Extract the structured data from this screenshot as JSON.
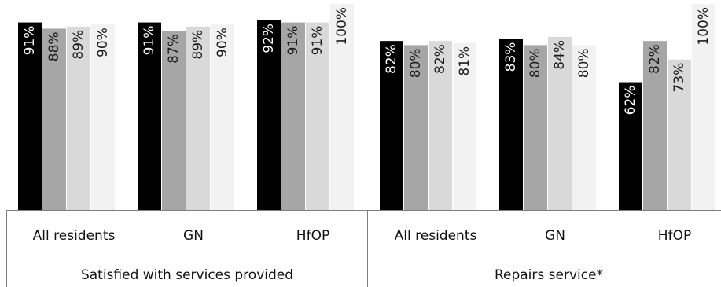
{
  "chart_data": {
    "type": "bar",
    "ylim": [
      0,
      105
    ],
    "value_suffix": "%",
    "grid": false,
    "legend": "none",
    "groups": [
      {
        "label": "Satisfied with services provided",
        "categories": [
          {
            "label": "All residents",
            "values": [
              91,
              88,
              89,
              90
            ]
          },
          {
            "label": "GN",
            "values": [
              91,
              87,
              89,
              90
            ]
          },
          {
            "label": "HfOP",
            "values": [
              92,
              91,
              91,
              100
            ]
          }
        ]
      },
      {
        "label": "Repairs service*",
        "categories": [
          {
            "label": "All residents",
            "values": [
              82,
              80,
              82,
              81
            ]
          },
          {
            "label": "GN",
            "values": [
              83,
              80,
              84,
              80
            ]
          },
          {
            "label": "HfOP",
            "values": [
              62,
              82,
              73,
              100
            ]
          }
        ]
      }
    ],
    "series_colors": [
      "#000000",
      "#a6a6a6",
      "#d9d9d9",
      "#f2f2f2"
    ],
    "label_colors": [
      "#ffffff",
      "#1a1a1a",
      "#1a1a1a",
      "#1a1a1a"
    ],
    "axis_color": "#7f7f7f"
  }
}
